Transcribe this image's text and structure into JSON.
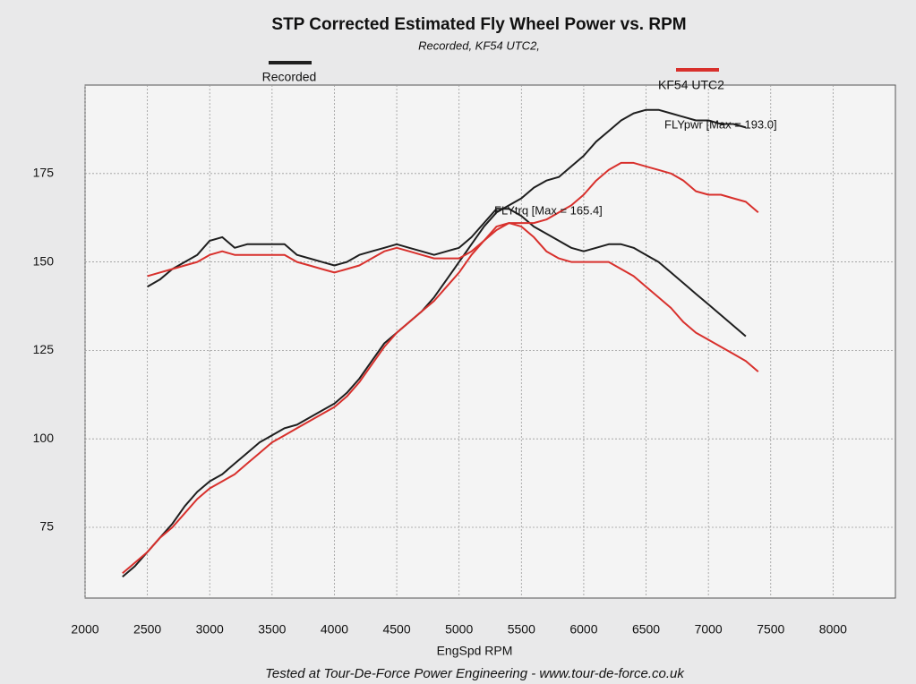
{
  "chart_data": {
    "type": "line",
    "title": "STP Corrected Estimated Fly Wheel Power vs. RPM",
    "subtitle": "Recorded, KF54 UTC2,",
    "x_label": "EngSpd RPM",
    "footer": "Tested at Tour-De-Force Power Engineering - www.tour-de-force.co.uk",
    "legend": [
      {
        "name": "Recorded",
        "color": "#1e1e1e"
      },
      {
        "name": "KF54 UTC2",
        "color": "#d8302c"
      }
    ],
    "annotations": [
      "FLYpwr [Max = 193.0]",
      "FLYtrq [Max = 165.4]"
    ],
    "x": [
      2300,
      2400,
      2500,
      2600,
      2700,
      2800,
      2900,
      3000,
      3100,
      3200,
      3300,
      3400,
      3500,
      3600,
      3700,
      3800,
      3900,
      4000,
      4100,
      4200,
      4300,
      4400,
      4500,
      4600,
      4700,
      4800,
      4900,
      5000,
      5100,
      5200,
      5300,
      5400,
      5500,
      5600,
      5700,
      5800,
      5900,
      6000,
      6100,
      6200,
      6300,
      6400,
      6500,
      6600,
      6700,
      6800,
      6900,
      7000,
      7100,
      7200,
      7300,
      7400
    ],
    "series": [
      {
        "color": "#1e1e1e",
        "values": [
          61,
          64,
          68,
          72,
          76,
          81,
          85,
          88,
          90,
          93,
          96,
          99,
          101,
          103,
          104,
          106,
          108,
          110,
          113,
          117,
          122,
          127,
          130,
          133,
          136,
          140,
          145,
          150,
          155,
          160,
          164,
          166,
          168,
          171,
          173,
          174,
          177,
          180,
          184,
          187,
          190,
          192,
          193,
          193,
          192,
          191,
          190,
          190,
          189,
          189,
          188,
          null
        ]
      },
      {
        "color": "#1e1e1e",
        "values": [
          null,
          null,
          143,
          145,
          148,
          150,
          152,
          156,
          157,
          154,
          155,
          155,
          155,
          155,
          152,
          151,
          150,
          149,
          150,
          152,
          153,
          154,
          155,
          154,
          153,
          152,
          153,
          154,
          157,
          161,
          165,
          165,
          163,
          160,
          158,
          156,
          154,
          153,
          154,
          155,
          155,
          154,
          152,
          150,
          147,
          144,
          141,
          138,
          135,
          132,
          129,
          null
        ]
      },
      {
        "color": "#d8302c",
        "values": [
          62,
          65,
          68,
          72,
          75,
          79,
          83,
          86,
          88,
          90,
          93,
          96,
          99,
          101,
          103,
          105,
          107,
          109,
          112,
          116,
          121,
          126,
          130,
          133,
          136,
          139,
          143,
          147,
          152,
          156,
          159,
          161,
          161,
          161,
          162,
          164,
          166,
          169,
          173,
          176,
          178,
          178,
          177,
          176,
          175,
          173,
          170,
          169,
          169,
          168,
          167,
          164
        ]
      },
      {
        "color": "#d8302c",
        "values": [
          null,
          null,
          146,
          147,
          148,
          149,
          150,
          152,
          153,
          152,
          152,
          152,
          152,
          152,
          150,
          149,
          148,
          147,
          148,
          149,
          151,
          153,
          154,
          153,
          152,
          151,
          151,
          151,
          153,
          156,
          160,
          161,
          160,
          157,
          153,
          151,
          150,
          150,
          150,
          150,
          148,
          146,
          143,
          140,
          137,
          133,
          130,
          128,
          126,
          124,
          122,
          119
        ]
      }
    ],
    "xlim": [
      2000,
      8500
    ],
    "xticks": [
      2000,
      2500,
      3000,
      3500,
      4000,
      4500,
      5000,
      5500,
      6000,
      6500,
      7000,
      7500,
      8000
    ],
    "ylim": [
      55,
      200
    ],
    "yticks": [
      75,
      100,
      125,
      150,
      175
    ],
    "grid": true
  }
}
